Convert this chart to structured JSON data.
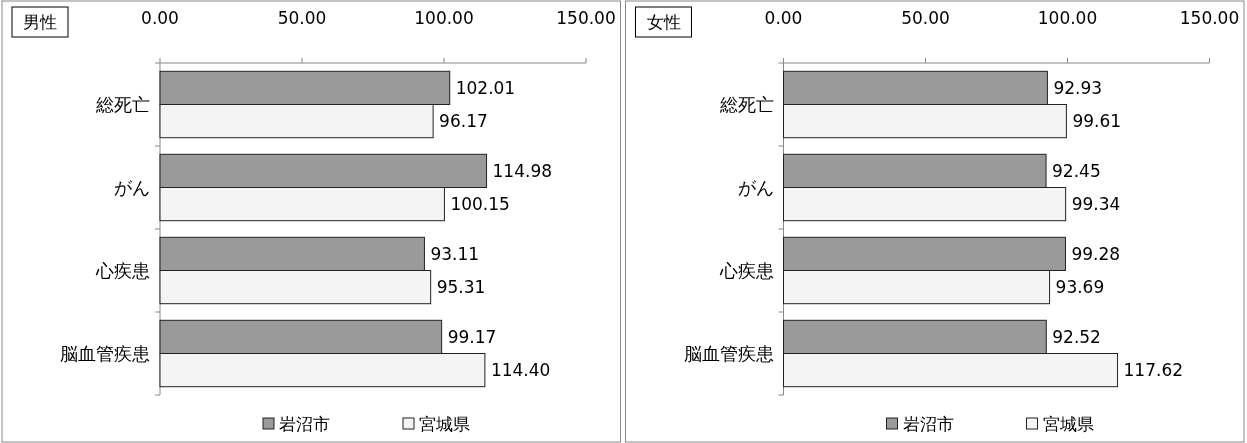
{
  "chart_data": [
    {
      "type": "bar",
      "orientation": "horizontal",
      "title": "男性",
      "categories": [
        "総死亡",
        "がん",
        "心疾患",
        "脳血管疾患"
      ],
      "series": [
        {
          "name": "岩沼市",
          "color": "#9a9a9a",
          "values": [
            102.01,
            114.98,
            93.11,
            99.17
          ],
          "value_labels": [
            "102.01",
            "114.98",
            "93.11",
            "99.17"
          ]
        },
        {
          "name": "宮城県",
          "color": "#f4f4f4",
          "values": [
            96.17,
            100.15,
            95.31,
            114.4
          ],
          "value_labels": [
            "96.17",
            "100.15",
            "95.31",
            "114.40"
          ]
        }
      ],
      "xlim": [
        0,
        150
      ],
      "xticks": [
        {
          "value": 0,
          "label": "0.00"
        },
        {
          "value": 50,
          "label": "50.00"
        },
        {
          "value": 100,
          "label": "100.00"
        },
        {
          "value": 150,
          "label": "150.00"
        }
      ],
      "legend": "bottom",
      "grid": false
    },
    {
      "type": "bar",
      "orientation": "horizontal",
      "title": "女性",
      "categories": [
        "総死亡",
        "がん",
        "心疾患",
        "脳血管疾患"
      ],
      "series": [
        {
          "name": "岩沼市",
          "color": "#9a9a9a",
          "values": [
            92.93,
            92.45,
            99.28,
            92.52
          ],
          "value_labels": [
            "92.93",
            "92.45",
            "99.28",
            "92.52"
          ]
        },
        {
          "name": "宮城県",
          "color": "#f4f4f4",
          "values": [
            99.61,
            99.34,
            93.69,
            117.62
          ],
          "value_labels": [
            "99.61",
            "99.34",
            "93.69",
            "117.62"
          ]
        }
      ],
      "xlim": [
        0,
        150
      ],
      "xticks": [
        {
          "value": 0,
          "label": "0.00"
        },
        {
          "value": 50,
          "label": "50.00"
        },
        {
          "value": 100,
          "label": "100.00"
        },
        {
          "value": 150,
          "label": "150.00"
        }
      ],
      "legend": "bottom",
      "grid": false
    }
  ]
}
